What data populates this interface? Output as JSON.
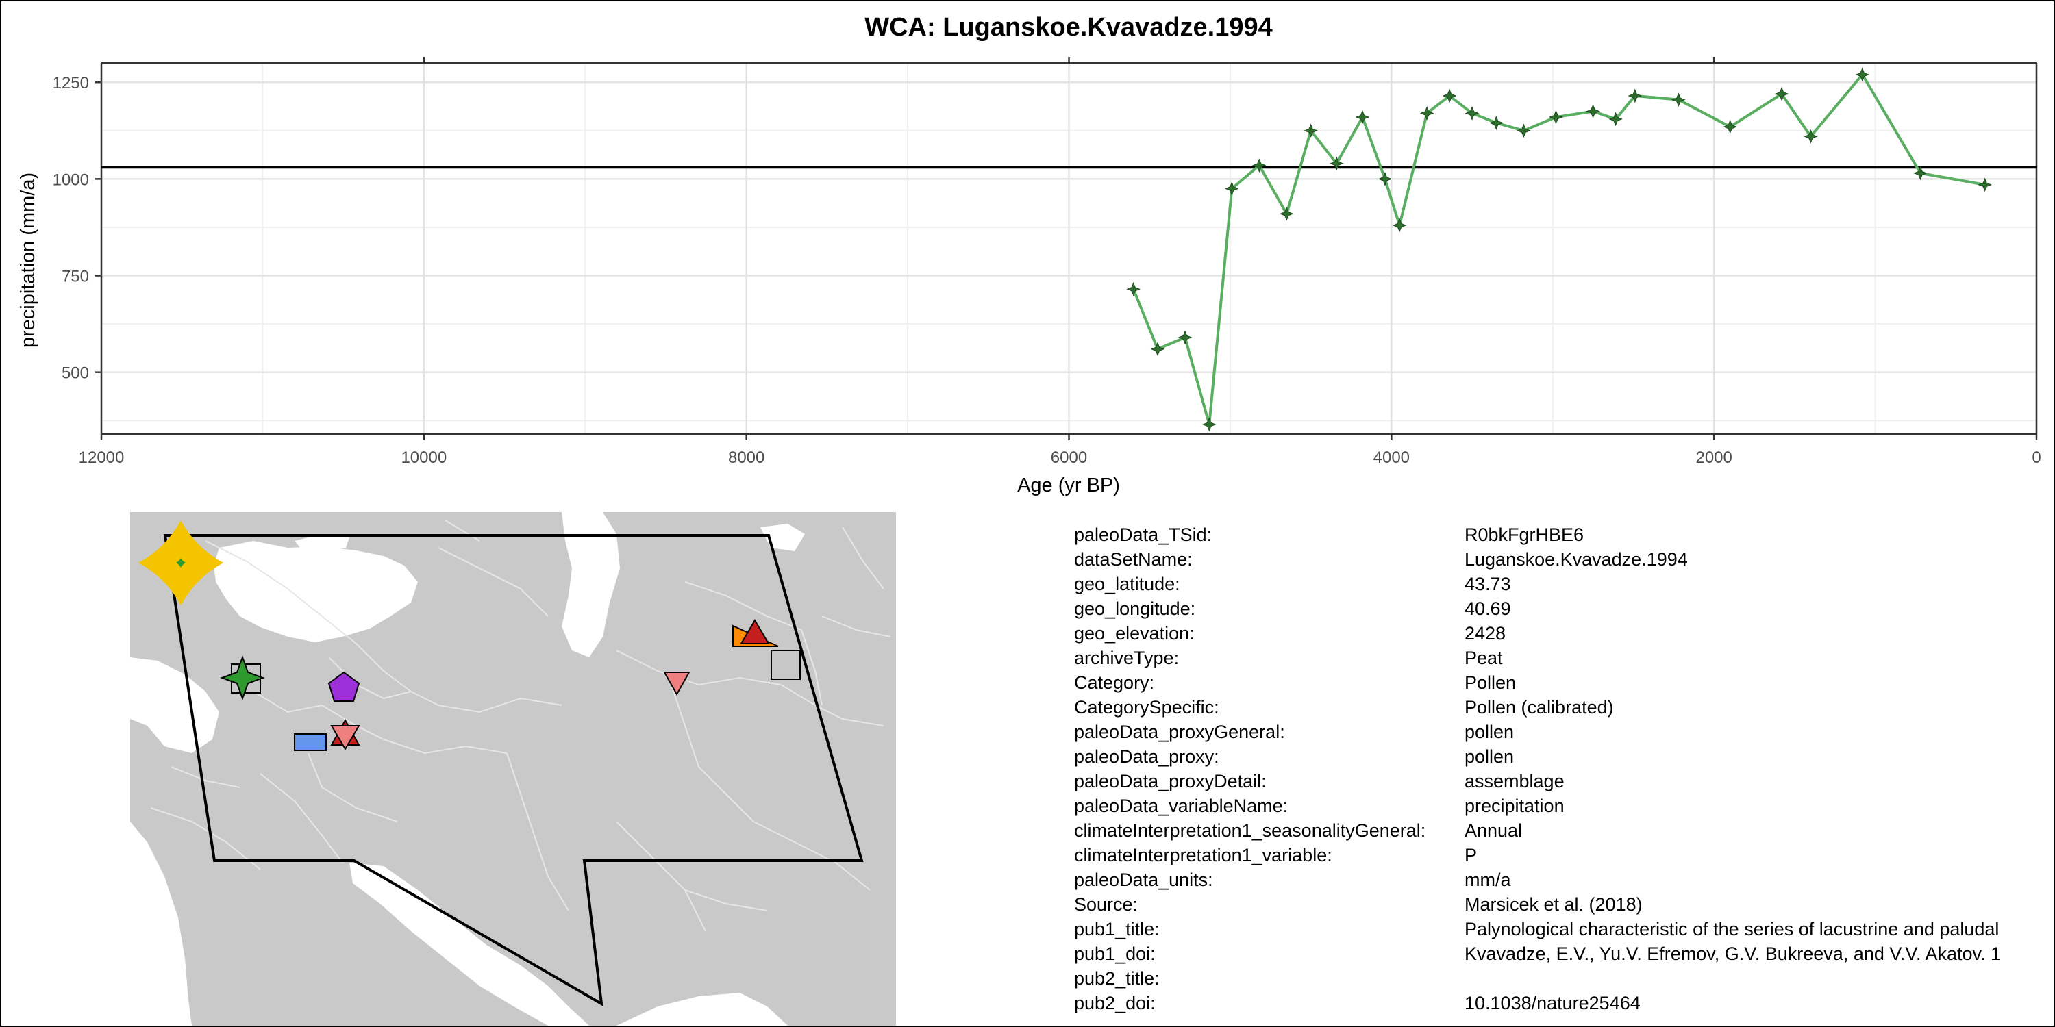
{
  "colors": {
    "series_line": "#5aae61",
    "series_marker": "#2d6e2d",
    "mean_line": "#000000",
    "map_land": "#c9c9c9",
    "map_water": "#ffffff"
  },
  "chart_data": {
    "type": "line",
    "title": "WCA: Luganskoe.Kvavadze.1994",
    "xlabel": "Age (yr BP)",
    "ylabel": "precipitation (mm/a)",
    "xlim": [
      12000,
      0
    ],
    "ylim": [
      340,
      1300
    ],
    "x_reversed": true,
    "grid": true,
    "x_ticks": [
      12000,
      10000,
      8000,
      6000,
      4000,
      2000,
      0
    ],
    "y_ticks": [
      500,
      750,
      1000,
      1250
    ],
    "reference_line_y": 1030,
    "series": [
      {
        "x": [
          5600,
          5450,
          5280,
          5130,
          4990,
          4820,
          4650,
          4500,
          4340,
          4180,
          4040,
          3950,
          3780,
          3640,
          3500,
          3350,
          3180,
          2980,
          2750,
          2610,
          2490,
          2220,
          1900,
          1580,
          1400,
          1080,
          720,
          320
        ],
        "y": [
          715,
          560,
          590,
          365,
          975,
          1035,
          910,
          1125,
          1040,
          1160,
          1000,
          880,
          1170,
          1215,
          1170,
          1145,
          1125,
          1160,
          1175,
          1155,
          1215,
          1205,
          1135,
          1220,
          1110,
          1270,
          1015,
          985
        ]
      }
    ]
  },
  "map": {
    "markers": [
      {
        "name": "target-site-star-marker",
        "shape": "star4",
        "color": "#f5c400"
      },
      {
        "name": "green-star-marker",
        "shape": "star4",
        "color": "#2e9a2e"
      },
      {
        "name": "gray-square-marker",
        "shape": "square",
        "color": "#c8c8c8"
      },
      {
        "name": "purple-pentagon-marker",
        "shape": "pentagon",
        "color": "#9b30d9"
      },
      {
        "name": "blue-rectangle-marker",
        "shape": "rect",
        "color": "#6495ed"
      },
      {
        "name": "pink-star-of-david-marker",
        "shape": "hexagram",
        "color": "#f08080"
      },
      {
        "name": "pink-triangle-down-marker",
        "shape": "triangle-down",
        "color": "#f08080"
      },
      {
        "name": "orange-triangle-marker",
        "shape": "triangle-right",
        "color": "#ff8c00"
      },
      {
        "name": "red-triangle-marker",
        "shape": "triangle-up",
        "color": "#c41e1e"
      },
      {
        "name": "gray-square-east-marker",
        "shape": "square",
        "color": "#c8c8c8"
      }
    ]
  },
  "metadata": [
    {
      "key": "paleoData_TSid:",
      "value": "R0bkFgrHBE6"
    },
    {
      "key": "dataSetName:",
      "value": "Luganskoe.Kvavadze.1994"
    },
    {
      "key": "geo_latitude:",
      "value": "43.73"
    },
    {
      "key": "geo_longitude:",
      "value": "40.69"
    },
    {
      "key": "geo_elevation:",
      "value": "2428"
    },
    {
      "key": "archiveType:",
      "value": "Peat"
    },
    {
      "key": "Category:",
      "value": "Pollen"
    },
    {
      "key": "CategorySpecific:",
      "value": "Pollen (calibrated)"
    },
    {
      "key": "paleoData_proxyGeneral:",
      "value": "pollen"
    },
    {
      "key": "paleoData_proxy:",
      "value": "pollen"
    },
    {
      "key": "paleoData_proxyDetail:",
      "value": "assemblage"
    },
    {
      "key": "paleoData_variableName:",
      "value": "precipitation"
    },
    {
      "key": "climateInterpretation1_seasonalityGeneral:",
      "value": "Annual"
    },
    {
      "key": "climateInterpretation1_variable:",
      "value": "P"
    },
    {
      "key": "paleoData_units:",
      "value": "mm/a"
    },
    {
      "key": "Source:",
      "value": "Marsicek et al. (2018)"
    },
    {
      "key": "pub1_title:",
      "value": "Palynological characteristic of the series of lacustrine and paludal"
    },
    {
      "key": "pub1_doi:",
      "value": "Kvavadze, E.V., Yu.V. Efremov, G.V. Bukreeva, and V.V. Akatov. 1"
    },
    {
      "key": "pub2_title:",
      "value": ""
    },
    {
      "key": "pub2_doi:",
      "value": "10.1038/nature25464"
    }
  ]
}
